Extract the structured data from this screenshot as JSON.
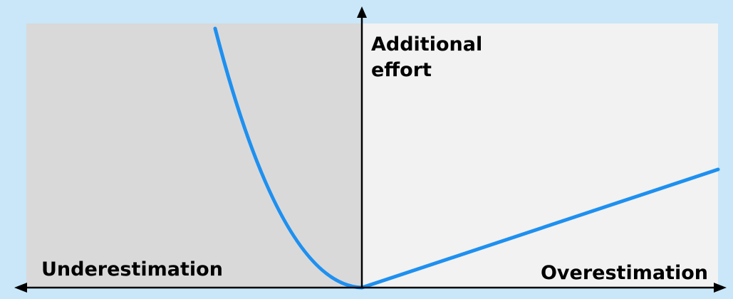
{
  "diagram": {
    "y_axis_label": "Additional effort",
    "left_label": "Underestimation",
    "right_label": "Overestimation",
    "colors": {
      "background": "#c9e7f8",
      "left_region": "#d9d9d9",
      "right_region": "#f2f2f2",
      "curve": "#1e90f0",
      "axis": "#000000"
    }
  }
}
